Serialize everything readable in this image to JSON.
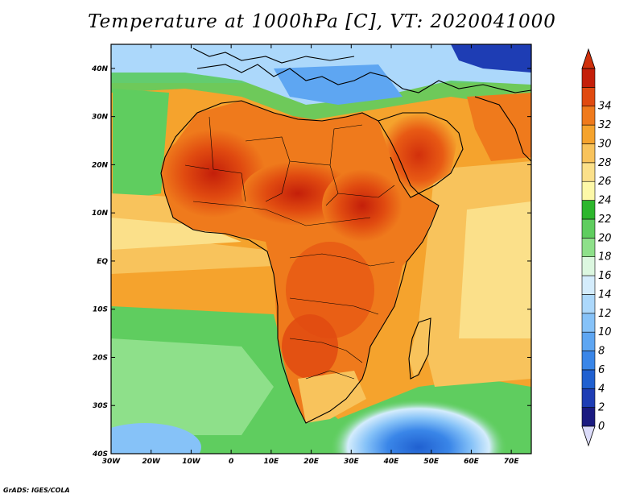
{
  "title": "Temperature at 1000hPa [C], VT: 2020041000",
  "credit": "GrADS: IGES/COLA",
  "map": {
    "lon_range": [
      -30,
      75
    ],
    "lat_range": [
      -40,
      45
    ],
    "lon_ticks": [
      "30W",
      "20W",
      "10W",
      "0",
      "10E",
      "20E",
      "30E",
      "40E",
      "50E",
      "60E",
      "70E"
    ],
    "lat_ticks": [
      "40S",
      "30S",
      "20S",
      "10S",
      "EQ",
      "10N",
      "20N",
      "30N",
      "40N"
    ]
  },
  "colorbar": {
    "labels": [
      "0",
      "2",
      "4",
      "6",
      "8",
      "10",
      "12",
      "14",
      "16",
      "18",
      "20",
      "22",
      "24",
      "26",
      "28",
      "30",
      "32",
      "34"
    ],
    "colors": [
      "#1a1a80",
      "#1e3db4",
      "#2060d0",
      "#3a86e8",
      "#5ea6f2",
      "#86c2f8",
      "#acd8fb",
      "#d4ecfc",
      "#dcf7e0",
      "#8ee08a",
      "#5fcd5f",
      "#2db62d",
      "#fdf8a8",
      "#fbe08a",
      "#f8c35c",
      "#f5a32d",
      "#ef7a1c",
      "#e04a10",
      "#c41f0a"
    ],
    "min_color": "#dcdcfa",
    "max_color": "#d0300c"
  }
}
